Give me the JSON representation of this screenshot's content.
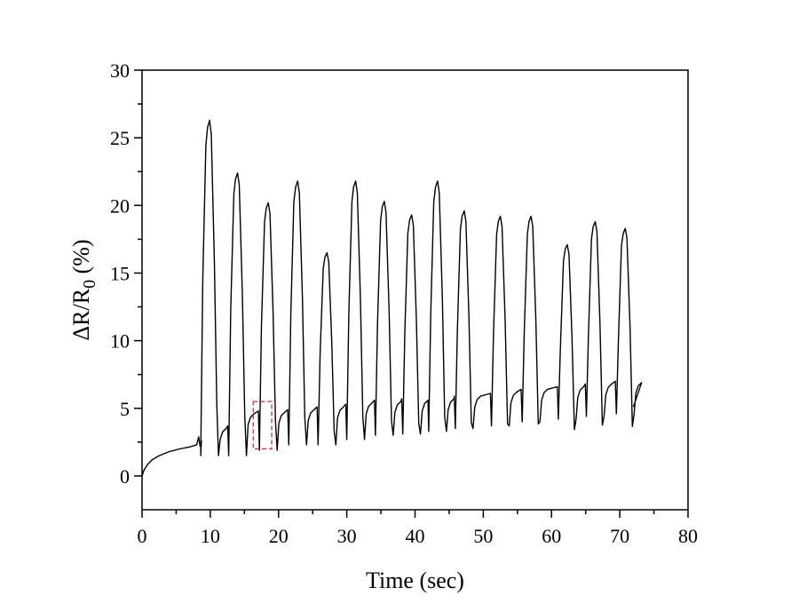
{
  "chart_data": {
    "type": "line",
    "xlabel": "Time (sec)",
    "ylabel": {
      "main": "ΔR/R",
      "subscript": "0",
      "suffix": " (%)"
    },
    "xlim": [
      0,
      80
    ],
    "ylim": [
      -2.5,
      30
    ],
    "xticks": [
      "0",
      "10",
      "20",
      "30",
      "40",
      "50",
      "60",
      "70",
      "80"
    ],
    "yticks": [
      "0",
      "5",
      "10",
      "15",
      "20",
      "25",
      "30"
    ],
    "line_color": "#000000",
    "highlight_color": "#e8262b",
    "grid": false,
    "baseline_points": [
      [
        0,
        0
      ],
      [
        0.3,
        0.45
      ],
      [
        0.8,
        0.85
      ],
      [
        1.5,
        1.2
      ],
      [
        2.5,
        1.5
      ],
      [
        4,
        1.8
      ],
      [
        5.5,
        2.0
      ],
      [
        7,
        2.15
      ],
      [
        8,
        2.3
      ],
      [
        8.3,
        2.9
      ],
      [
        8.5,
        2.2
      ],
      [
        8.7,
        2.6
      ]
    ],
    "peaks": [
      {
        "t": 9.9,
        "peak": 26.3,
        "trough": 1.5,
        "level": 3.6
      },
      {
        "t": 14.0,
        "peak": 22.4,
        "trough": 1.5,
        "level": 4.7
      },
      {
        "t": 18.5,
        "peak": 20.2,
        "trough": 1.9,
        "level": 4.8
      },
      {
        "t": 22.8,
        "peak": 21.8,
        "trough": 2.3,
        "level": 5.0
      },
      {
        "t": 27.1,
        "peak": 16.5,
        "trough": 2.3,
        "level": 5.2
      },
      {
        "t": 31.3,
        "peak": 21.8,
        "trough": 2.7,
        "level": 5.5
      },
      {
        "t": 35.5,
        "peak": 20.3,
        "trough": 3.0,
        "level": 5.6
      },
      {
        "t": 39.5,
        "peak": 19.3,
        "trough": 3.1,
        "level": 5.7
      },
      {
        "t": 43.3,
        "peak": 21.8,
        "trough": 3.3,
        "level": 5.8
      },
      {
        "t": 47.2,
        "peak": 19.6,
        "trough": 3.5,
        "level": 6.0
      },
      {
        "t": 52.5,
        "peak": 19.2,
        "trough": 3.7,
        "level": 6.3
      },
      {
        "t": 57.0,
        "peak": 19.2,
        "trough": 4.0,
        "level": 6.5
      },
      {
        "t": 62.3,
        "peak": 17.1,
        "trough": 4.2,
        "level": 6.7
      },
      {
        "t": 66.4,
        "peak": 18.8,
        "trough": 4.4,
        "level": 6.9
      },
      {
        "t": 70.8,
        "peak": 18.3,
        "trough": 4.6,
        "level": 7.0
      }
    ],
    "end_point": [
      72,
      5.1
    ],
    "highlight_box": {
      "x0": 16.3,
      "x1": 19.0,
      "y0": 2.0,
      "y1": 5.5
    }
  }
}
